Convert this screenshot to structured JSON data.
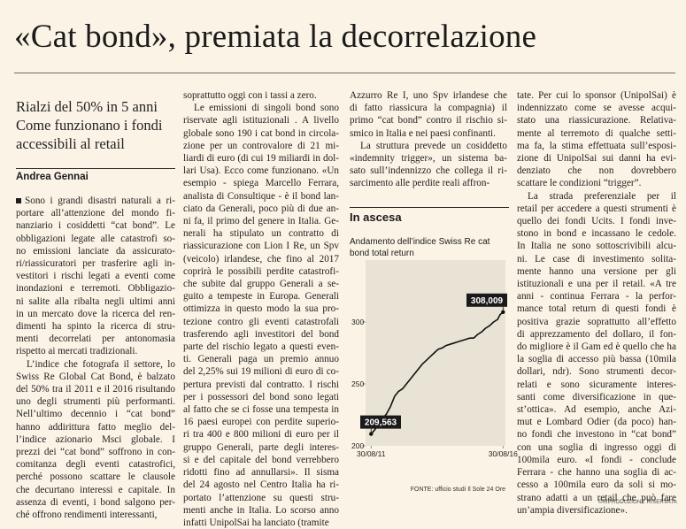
{
  "headline": "«Cat bond», premiata la decorrelazione",
  "deck": [
    "Rialzi del 50% in 5 anni",
    "Come funzionano i fondi",
    "accessibili al retail"
  ],
  "byline": "Andrea Gennai",
  "columns": {
    "col1": [
      "Sono i grandi disastri naturali a ri-",
      "portare all’attenzione del mondo fi-",
      "nanziario i cosiddetti “cat bond”. Le",
      "obbligazioni legate alle catastrofi so-",
      "no emissioni lanciate da assicurato-",
      "ri/riassicuratori per trasferire agli in-",
      "vestitori i rischi legati a eventi come",
      "inondazioni e terremoti. Obbligazio-",
      "ni salite alla ribalta negli ultimi anni",
      "in un mercato dove la ricerca del ren-",
      "dimenti ha spinto la ricerca di stru-",
      "menti decorrelati per antonomasia",
      "rispetto ai mercati tradizionali.",
      "L’indice che fotografa il settore, lo",
      "Swiss Re Global Cat Bond, è balzato",
      "del 50% tra il 2011 e il 2016 risultando",
      "uno degli strumenti più performanti.",
      "Nell’ultimo decennio i “cat bond”",
      "hanno addirittura fatto meglio del-",
      "l’indice azionario Msci globale. I",
      "prezzi dei “cat bond” soffrono in con-",
      "comitanza degli eventi catastrofici,",
      "perché possono scattare le clausole",
      "che decurtano interessi e capitale. In",
      "assenza di eventi, i bond salgono per-",
      "ché offrono rendimenti interessanti,"
    ],
    "col2": [
      "soprattutto oggi con i tassi a zero.",
      "Le emissioni di singoli bond sono",
      "riservate agli istituzionali . A livello",
      "globale sono 190 i cat bond in circola-",
      "zione per un controvalore di 21 mi-",
      "liardi di euro (di cui 19 miliardi in dol-",
      "lari Usa). Ecco come funzionano. «Un",
      "esempio - spiega Marcello Ferrara,",
      "analista di Consultique - è il bond lan-",
      "ciato da Generali, poco più di due an-",
      "ni fa, il primo del genere in Italia. Ge-",
      "nerali ha stipulato un contratto di",
      "riassicurazione con Lion I Re, un Spv",
      "(veicolo) irlandese, che fino al 2017",
      "coprirà le possibili perdite catastrofi-",
      "che subite dal gruppo Generali a se-",
      "guito a tempeste in Europa. Generali",
      "ottimizza in questo modo la sua pro-",
      "tezione contro gli eventi catastrofali",
      "trasferendo agli investitori del bond",
      "parte del rischio legato a questi even-",
      "ti. Generali paga un premio annuo",
      "del 2,25% sui 19 milioni di euro di co-",
      "pertura previsti dal contratto. I rischi",
      "per i possessori del bond sono legati",
      "al fatto che se ci fosse una tempesta in",
      "16 paesi europei con perdite superio-",
      "ri tra 400 e 800 milioni di euro per il",
      "gruppo Generali, parte degli interes-",
      "si e del capitale del bond verrebbero",
      "ridotti fino ad annullarsi». Il sisma",
      "del 24 agosto nel Centro Italia ha ri-",
      "portato l’attenzione su questi stru-",
      "menti anche in Italia. Lo scorso anno",
      "infatti UnipolSai ha lanciato (tramite"
    ],
    "col3": [
      "Azzurro Re I, uno Spv irlandese che",
      "di fatto riassicura la compagnia) il",
      "primo “cat bond” contro il rischio si-",
      "smico in Italia e nei paesi confinanti.",
      "La struttura prevede un cosiddetto",
      "«indemnity trigger», un sistema ba-",
      "sato sull’indennizzo che collega il ri-",
      "sarcimento alle perdite reali affron-"
    ],
    "col4": [
      "tate. Per cui lo sponsor (UnipolSai) è",
      "indennizzato come se avesse acqui-",
      "stato una riassicurazione. Relativa-",
      "mente al terremoto di qualche setti-",
      "ma fa, la stima effettuata sull’esposi-",
      "zione di UnipolSai sui danni ha evi-",
      "denziato che non dovrebbero",
      "scattare le condizioni “trigger”.",
      "La strada preferenziale per il",
      "retail per accedere a questi strumenti è",
      "quello dei fondi Ucits. I fondi inve-",
      "stono in bond e incassano le cedole.",
      "In Italia ne sono sottoscrivibili alcu-",
      "ni. Le case di investimento solita-",
      "mente hanno una versione per gli",
      "istituzionali e una per il retail. «A tre",
      "anni - continua Ferrara - la perfor-",
      "mance total return di questi fondi è",
      "positiva grazie soprattutto all’effetto",
      "di apprezzamento del dollaro, il fon-",
      "do migliore è il Gam ed è quello che ha",
      "la soglia di accesso più bassa (10mila",
      "dollari, ndr). Sono strumenti decor-",
      "relati e sono sicuramente interes-",
      "santi come diversificazione in que-",
      "st’ottica». Ad esempio, anche Azi-",
      "mut e Lombard Odier (da poco) han-",
      "no fondi che investono in “cat bond”",
      "con una soglia di ingresso oggi di",
      "100mila euro. «I fondi - conclude",
      "Ferrara - che hanno una soglia di ac-",
      "cesso a 100mila euro da soli si mo-",
      "strano adatti a un retail che può fare",
      "un’ampia diversificazione»."
    ]
  },
  "chart_data": {
    "type": "line",
    "title": "In ascesa",
    "subtitle": "Andamento dell’indice Swiss Re cat bond total return",
    "source": "FONTE: ufficio studi Il Sole 24 Ore",
    "x_tick_labels": [
      "30/08/11",
      "30/08/16"
    ],
    "y_ticks": [
      200,
      250,
      300
    ],
    "ylim": [
      200,
      350
    ],
    "xlim": [
      2011.45,
      2016.75
    ],
    "labels": [
      {
        "x": 2011.66,
        "y": 209.563,
        "text": "209,563"
      },
      {
        "x": 2016.66,
        "y": 308.009,
        "text": "308,009"
      }
    ],
    "series": [
      {
        "x": [
          2011.66,
          2011.8,
          2011.95,
          2012.1,
          2012.25,
          2012.4,
          2012.55,
          2012.7,
          2012.85,
          2013.0,
          2013.15,
          2013.3,
          2013.45,
          2013.6,
          2013.75,
          2013.9,
          2014.05,
          2014.2,
          2014.35,
          2014.5,
          2014.65,
          2014.8,
          2014.95,
          2015.1,
          2015.25,
          2015.4,
          2015.55,
          2015.7,
          2015.85,
          2016.0,
          2016.15,
          2016.3,
          2016.45,
          2016.55,
          2016.66
        ],
        "values": [
          209.563,
          213,
          218,
          222,
          226,
          232,
          240,
          244,
          246,
          250,
          254,
          258,
          262,
          266,
          269,
          272,
          275,
          278,
          279,
          281,
          282,
          283,
          284,
          285,
          286,
          287,
          287,
          290,
          292,
          295,
          297,
          300,
          302,
          306,
          308.009
        ]
      }
    ],
    "line_color": "#111111",
    "grid": false
  },
  "copyright": "©RIPRODUZIONE RISERVATA"
}
